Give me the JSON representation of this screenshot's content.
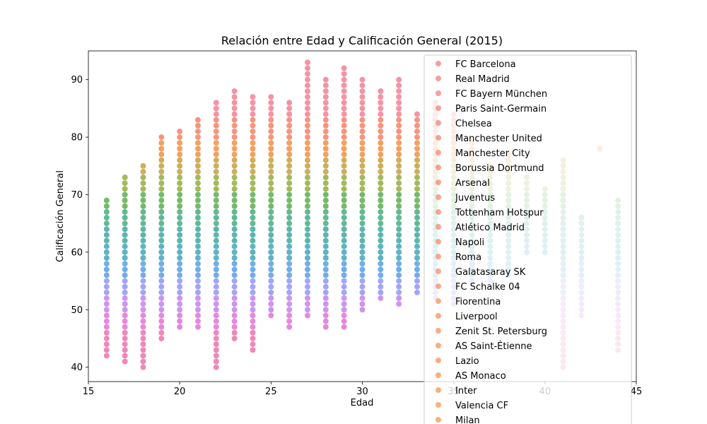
{
  "chart_data": {
    "type": "scatter",
    "title": "Relación entre Edad y Calificación General (2015)",
    "xlabel": "Edad",
    "ylabel": "Calificación General",
    "xlim": [
      15,
      45
    ],
    "ylim": [
      37.5,
      95
    ],
    "xticks": [
      15,
      20,
      25,
      30,
      35,
      40,
      45
    ],
    "yticks": [
      40,
      50,
      60,
      70,
      80,
      90
    ],
    "grid": false,
    "legend_position": "top-right",
    "series": [
      {
        "name": "FC Barcelona",
        "color": "#f0868e"
      },
      {
        "name": "Real Madrid",
        "color": "#f1878b"
      },
      {
        "name": "FC Bayern München",
        "color": "#f2888a"
      },
      {
        "name": "Paris Saint-Germain",
        "color": "#f28a86"
      },
      {
        "name": "Chelsea",
        "color": "#f38983"
      },
      {
        "name": "Manchester United",
        "color": "#f38a80"
      },
      {
        "name": "Manchester City",
        "color": "#f48b7e"
      },
      {
        "name": "Borussia Dortmund",
        "color": "#f48c7b"
      },
      {
        "name": "Arsenal",
        "color": "#f48d79"
      },
      {
        "name": "Juventus",
        "color": "#f58e77"
      },
      {
        "name": "Tottenham Hotspur",
        "color": "#f58f75"
      },
      {
        "name": "Atlético Madrid",
        "color": "#f59073"
      },
      {
        "name": "Napoli",
        "color": "#f59172"
      },
      {
        "name": "Roma",
        "color": "#f69270"
      },
      {
        "name": "Galatasaray SK",
        "color": "#f6936e"
      },
      {
        "name": "FC Schalke 04",
        "color": "#f6946c"
      },
      {
        "name": "Fiorentina",
        "color": "#f6956a"
      },
      {
        "name": "Liverpool",
        "color": "#f69668"
      },
      {
        "name": "Zenit St. Petersburg",
        "color": "#f69766"
      },
      {
        "name": "AS Saint-Étienne",
        "color": "#f69864"
      },
      {
        "name": "Lazio",
        "color": "#f69962"
      },
      {
        "name": "AS Monaco",
        "color": "#f69a60"
      },
      {
        "name": "Inter",
        "color": "#f69b5e"
      },
      {
        "name": "Valencia CF",
        "color": "#f69c5c"
      },
      {
        "name": "Milan",
        "color": "#f69d5a"
      }
    ],
    "age_rating_ranges": [
      {
        "x": 16,
        "min": 42,
        "max": 69
      },
      {
        "x": 17,
        "min": 41,
        "max": 73
      },
      {
        "x": 18,
        "min": 40,
        "max": 75
      },
      {
        "x": 19,
        "min": 45,
        "max": 80
      },
      {
        "x": 20,
        "min": 47,
        "max": 81
      },
      {
        "x": 21,
        "min": 47,
        "max": 83
      },
      {
        "x": 22,
        "min": 40,
        "max": 86
      },
      {
        "x": 23,
        "min": 45,
        "max": 88
      },
      {
        "x": 24,
        "min": 43,
        "max": 87
      },
      {
        "x": 25,
        "min": 49,
        "max": 87
      },
      {
        "x": 26,
        "min": 47,
        "max": 86
      },
      {
        "x": 27,
        "min": 49,
        "max": 93
      },
      {
        "x": 28,
        "min": 47,
        "max": 90
      },
      {
        "x": 29,
        "min": 47,
        "max": 92
      },
      {
        "x": 30,
        "min": 50,
        "max": 90
      },
      {
        "x": 31,
        "min": 52,
        "max": 88
      },
      {
        "x": 32,
        "min": 51,
        "max": 90
      },
      {
        "x": 33,
        "min": 53,
        "max": 84
      },
      {
        "x": 34,
        "min": 52,
        "max": 86
      },
      {
        "x": 35,
        "min": 51,
        "max": 84
      },
      {
        "x": 36,
        "min": 55,
        "max": 79
      },
      {
        "x": 37,
        "min": 55,
        "max": 75
      },
      {
        "x": 38,
        "min": 56,
        "max": 77
      },
      {
        "x": 39,
        "min": 60,
        "max": 73
      },
      {
        "x": 40,
        "min": 60,
        "max": 71
      },
      {
        "x": 41,
        "min": 40,
        "max": 76
      },
      {
        "x": 42,
        "min": 49,
        "max": 66
      },
      {
        "x": 43,
        "min": 78,
        "max": 78
      },
      {
        "x": 44,
        "min": 43,
        "max": 69
      }
    ]
  }
}
